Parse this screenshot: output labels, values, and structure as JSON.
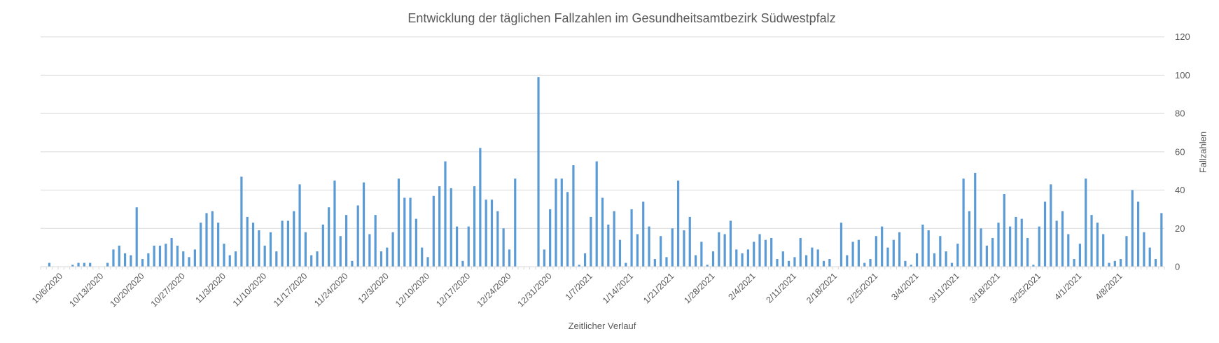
{
  "chart_data": {
    "type": "bar",
    "title": "Entwicklung der täglichen Fallzahlen im Gesundheitsamtbezirk Südwestpfalz",
    "xlabel": "Zeitlicher Verlauf",
    "ylabel": "Fallzahlen",
    "ylim": [
      0,
      120
    ],
    "y_ticks": [
      0,
      20,
      40,
      60,
      80,
      100,
      120
    ],
    "y_axis_side": "right",
    "grid": true,
    "legend": "none",
    "bar_color": "#5b9bd5",
    "x_tick_labels": [
      "10/6/2020",
      "10/13/2020",
      "10/20/2020",
      "10/27/2020",
      "11/3/2020",
      "11/10/2020",
      "11/17/2020",
      "11/24/2020",
      "12/3/2020",
      "12/10/2020",
      "12/17/2020",
      "12/24/2020",
      "12/31/2020",
      "1/7/2021",
      "1/14/2021",
      "1/21/2021",
      "1/28/2021",
      "2/4/2021",
      "2/11/2021",
      "2/18/2021",
      "2/25/2021",
      "3/4/2021",
      "3/11/2021",
      "3/18/2021",
      "3/25/2021",
      "4/1/2021",
      "4/8/2021"
    ],
    "values": [
      0,
      2,
      0,
      0,
      0,
      1,
      2,
      2,
      2,
      0,
      0,
      2,
      9,
      11,
      7,
      6,
      31,
      4,
      7,
      11,
      11,
      12,
      15,
      11,
      8,
      5,
      9,
      23,
      28,
      29,
      23,
      12,
      6,
      8,
      47,
      26,
      23,
      19,
      11,
      18,
      8,
      24,
      24,
      29,
      43,
      18,
      6,
      8,
      22,
      31,
      45,
      16,
      27,
      3,
      32,
      44,
      17,
      27,
      8,
      10,
      18,
      46,
      36,
      36,
      25,
      10,
      5,
      37,
      42,
      55,
      41,
      21,
      3,
      21,
      42,
      62,
      35,
      35,
      29,
      20,
      9,
      46,
      0,
      0,
      0,
      99,
      9,
      30,
      46,
      46,
      39,
      53,
      1,
      7,
      26,
      55,
      36,
      22,
      29,
      14,
      2,
      30,
      17,
      34,
      21,
      4,
      16,
      5,
      20,
      45,
      19,
      26,
      6,
      13,
      1,
      8,
      18,
      17,
      24,
      9,
      7,
      9,
      13,
      17,
      14,
      15,
      4,
      8,
      3,
      5,
      15,
      6,
      10,
      9,
      3,
      4,
      0,
      23,
      6,
      13,
      14,
      2,
      4,
      16,
      21,
      10,
      14,
      18,
      3,
      1,
      7,
      22,
      19,
      7,
      16,
      8,
      2,
      12,
      46,
      29,
      49,
      20,
      11,
      15,
      23,
      38,
      21,
      26,
      25,
      15,
      1,
      21,
      34,
      43,
      24,
      29,
      17,
      4,
      12,
      46,
      27,
      23,
      17,
      2,
      3,
      4,
      16,
      40,
      34,
      18,
      10,
      4,
      28
    ]
  }
}
